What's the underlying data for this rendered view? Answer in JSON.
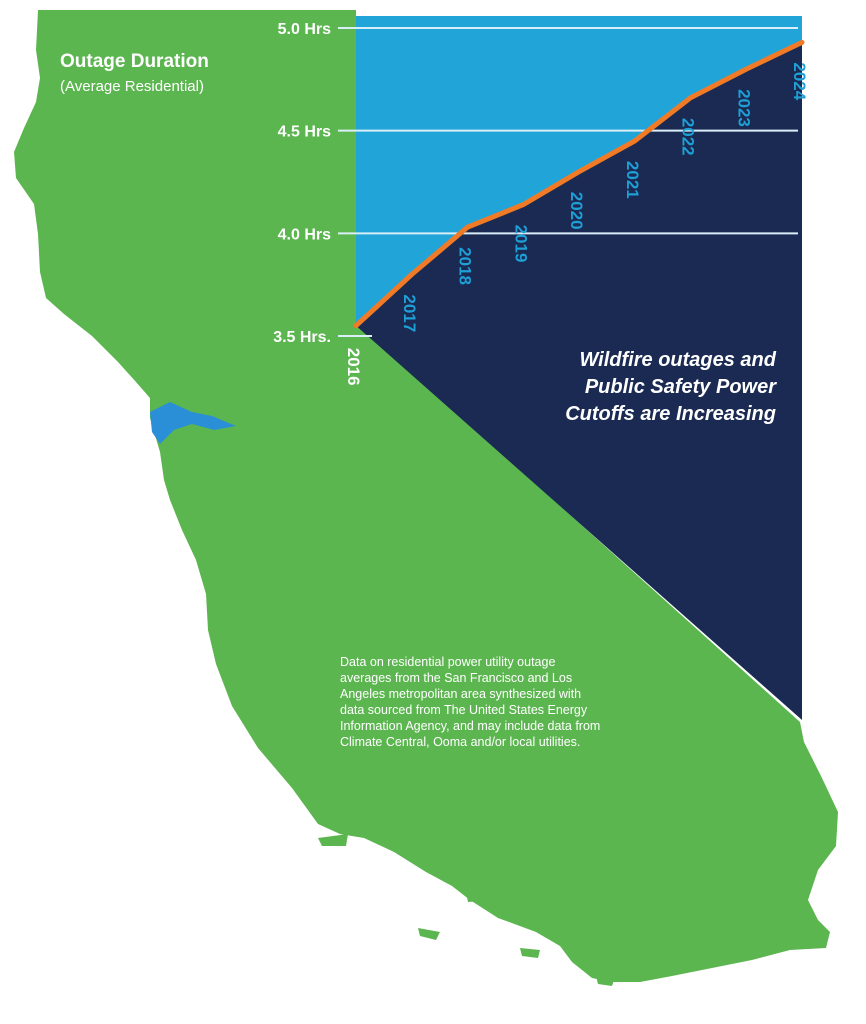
{
  "colors": {
    "land": "#5cb650",
    "sky": "#21a5d8",
    "area": "#1a2a52",
    "line": "#f07a25",
    "bay": "#2a8fd6",
    "text": "#ffffff",
    "year_label": "#1e9fd6",
    "gridline": "#d8eef8"
  },
  "chart_data": {
    "type": "line",
    "title": "Outage Duration",
    "subtitle": "(Average Residential)",
    "xlabel": "",
    "ylabel": "Outage Duration (Average Residential)",
    "x": [
      "2016",
      "2017",
      "2018",
      "2019",
      "2020",
      "2021",
      "2022",
      "2023",
      "2024"
    ],
    "y": [
      3.55,
      3.8,
      4.03,
      4.14,
      4.3,
      4.45,
      4.66,
      4.8,
      4.93
    ],
    "series": [
      {
        "name": "Average residential outage duration (hrs)",
        "values": [
          3.55,
          3.8,
          4.03,
          4.14,
          4.3,
          4.45,
          4.66,
          4.8,
          4.93
        ]
      }
    ],
    "ylim": [
      3.5,
      5.0
    ],
    "ytick_values": [
      5.0,
      4.5,
      4.0,
      3.5
    ],
    "ytick_labels": [
      "5.0 Hrs",
      "4.5 Hrs",
      "4.0 Hrs",
      "3.5 Hrs."
    ],
    "grid": true,
    "annotation": "Wildfire outages and Public Safety Power Cutoffs are Increasing",
    "annotation_lines": [
      "Wildfire outages and",
      "Public Safety Power",
      "Cutoffs are Increasing"
    ],
    "source_note_lines": [
      "Data on residential power utility outage",
      "averages from the San Francisco and Los",
      "Angeles metropolitan area synthesized with",
      "data sourced from The United States Energy",
      "Information Agency, and may include data from",
      "Climate Central, Ooma and/or local utilities."
    ]
  }
}
